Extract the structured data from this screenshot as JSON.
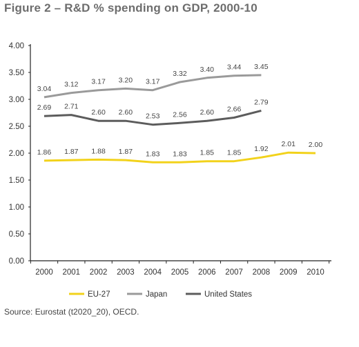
{
  "title": "Figure 2 – R&D % spending on GDP, 2000-10",
  "source": "Source: Eurostat (t2020_20), OECD.",
  "chart_data": {
    "type": "line",
    "title": "Figure 2 – R&D % spending on GDP, 2000-10",
    "xlabel": "",
    "ylabel": "",
    "x": [
      "2000",
      "2001",
      "2002",
      "2003",
      "2004",
      "2005",
      "2006",
      "2007",
      "2008",
      "2009",
      "2010"
    ],
    "ylim": [
      0,
      4
    ],
    "yticks": [
      0,
      0.5,
      1,
      1.5,
      2,
      2.5,
      3,
      3.5,
      4
    ],
    "ytick_labels": [
      "0.00",
      "0.50",
      "1.00",
      "1.50",
      "2.00",
      "2.50",
      "3.00",
      "3.50",
      "4.00"
    ],
    "grid": false,
    "legend_position": "bottom",
    "series": [
      {
        "name": "EU-27",
        "color": "#f2d21b",
        "values": [
          1.86,
          1.87,
          1.88,
          1.87,
          1.83,
          1.83,
          1.85,
          1.85,
          1.92,
          2.01,
          2.0
        ],
        "labels": [
          "1.86",
          "1.87",
          "1.88",
          "1.87",
          "1.83",
          "1.83",
          "1.85",
          "1.85",
          "1.92",
          "2.01",
          "2.00"
        ]
      },
      {
        "name": "Japan",
        "color": "#9a9a9a",
        "values": [
          3.04,
          3.12,
          3.17,
          3.2,
          3.17,
          3.32,
          3.4,
          3.44,
          3.45,
          null,
          null
        ],
        "labels": [
          "3.04",
          "3.12",
          "3.17",
          "3.20",
          "3.17",
          "3.32",
          "3.40",
          "3.44",
          "3.45",
          null,
          null
        ]
      },
      {
        "name": "United States",
        "color": "#5c5c5c",
        "values": [
          2.69,
          2.71,
          2.6,
          2.6,
          2.53,
          2.56,
          2.6,
          2.66,
          2.79,
          null,
          null
        ],
        "labels": [
          "2.69",
          "2.71",
          "2.60",
          "2.60",
          "2.53",
          "2.56",
          "2.60",
          "2.66",
          "2.79",
          null,
          null
        ]
      }
    ]
  }
}
